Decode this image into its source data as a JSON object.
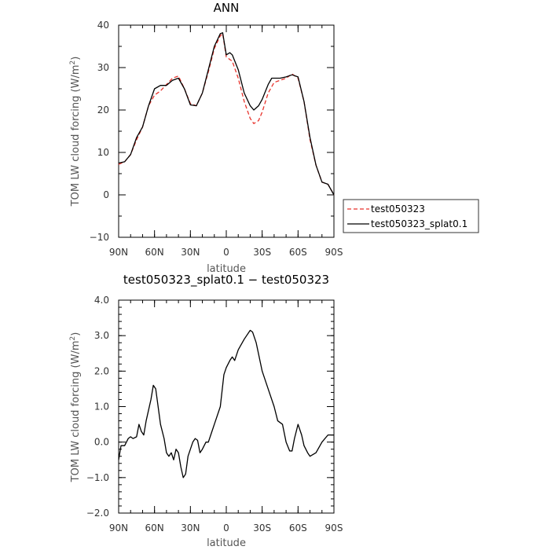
{
  "chart_data": [
    {
      "type": "line",
      "title": "ANN",
      "xlabel": "latitude",
      "ylabel": "TOM LW cloud forcing (W/m",
      "ylabel_sup": "2",
      "ylabel_end": ")",
      "xlim": [
        90,
        -90
      ],
      "ylim": [
        -10,
        40
      ],
      "xticks": [
        {
          "v": 90,
          "label": "90N"
        },
        {
          "v": 60,
          "label": "60N"
        },
        {
          "v": 30,
          "label": "30N"
        },
        {
          "v": 0,
          "label": "0"
        },
        {
          "v": -30,
          "label": "30S"
        },
        {
          "v": -60,
          "label": "60S"
        },
        {
          "v": -90,
          "label": "90S"
        }
      ],
      "yticks": [
        {
          "v": -10,
          "label": "−10"
        },
        {
          "v": 0,
          "label": "0"
        },
        {
          "v": 10,
          "label": "10"
        },
        {
          "v": 20,
          "label": "20"
        },
        {
          "v": 30,
          "label": "30"
        },
        {
          "v": 40,
          "label": "40"
        }
      ],
      "legend_position": "right",
      "series": [
        {
          "name": "test050323",
          "color": "#e8322b",
          "dash": "dashed",
          "points": [
            [
              90,
              7.2
            ],
            [
              85,
              7.8
            ],
            [
              80,
              9.5
            ],
            [
              75,
              13
            ],
            [
              70,
              16
            ],
            [
              65,
              21
            ],
            [
              60,
              23.5
            ],
            [
              55,
              24.5
            ],
            [
              50,
              26
            ],
            [
              45,
              27.5
            ],
            [
              40,
              28
            ],
            [
              35,
              25
            ],
            [
              30,
              21.5
            ],
            [
              25,
              21
            ],
            [
              20,
              24
            ],
            [
              15,
              29
            ],
            [
              10,
              34.5
            ],
            [
              5,
              37.5
            ],
            [
              3,
              38
            ],
            [
              0,
              32.5
            ],
            [
              -5,
              31.5
            ],
            [
              -10,
              27.5
            ],
            [
              -15,
              22
            ],
            [
              -20,
              18
            ],
            [
              -23,
              16.8
            ],
            [
              -27,
              17.5
            ],
            [
              -30,
              19.5
            ],
            [
              -35,
              24
            ],
            [
              -40,
              26.5
            ],
            [
              -45,
              27
            ],
            [
              -50,
              27.5
            ],
            [
              -55,
              28.5
            ],
            [
              -60,
              27.5
            ],
            [
              -65,
              22
            ],
            [
              -70,
              13
            ],
            [
              -75,
              7
            ],
            [
              -80,
              3
            ],
            [
              -85,
              2.5
            ],
            [
              -90,
              0
            ]
          ]
        },
        {
          "name": "test050323_splat0.1",
          "color": "#000000",
          "dash": "solid",
          "points": [
            [
              90,
              7.5
            ],
            [
              85,
              7.8
            ],
            [
              80,
              9.5
            ],
            [
              75,
              13.5
            ],
            [
              70,
              16
            ],
            [
              65,
              21
            ],
            [
              60,
              25
            ],
            [
              55,
              25.8
            ],
            [
              50,
              25.8
            ],
            [
              45,
              27
            ],
            [
              40,
              27.5
            ],
            [
              35,
              25
            ],
            [
              30,
              21.2
            ],
            [
              25,
              21
            ],
            [
              20,
              24
            ],
            [
              15,
              29.5
            ],
            [
              10,
              35
            ],
            [
              5,
              38
            ],
            [
              3,
              38.2
            ],
            [
              0,
              33
            ],
            [
              -3,
              33.5
            ],
            [
              -5,
              33
            ],
            [
              -10,
              29.5
            ],
            [
              -15,
              24
            ],
            [
              -20,
              21
            ],
            [
              -23,
              20
            ],
            [
              -27,
              21
            ],
            [
              -30,
              22.5
            ],
            [
              -35,
              26
            ],
            [
              -38,
              27.5
            ],
            [
              -45,
              27.5
            ],
            [
              -50,
              27.8
            ],
            [
              -55,
              28.3
            ],
            [
              -60,
              27.8
            ],
            [
              -65,
              22
            ],
            [
              -70,
              13.5
            ],
            [
              -75,
              7
            ],
            [
              -80,
              3
            ],
            [
              -85,
              2.5
            ],
            [
              -90,
              0
            ]
          ]
        }
      ]
    },
    {
      "type": "line",
      "title": "test050323_splat0.1 − test050323",
      "xlabel": "latitude",
      "ylabel": "TOM LW cloud forcing (W/m",
      "ylabel_sup": "2",
      "ylabel_end": ")",
      "xlim": [
        90,
        -90
      ],
      "ylim": [
        -2.0,
        4.0
      ],
      "xticks": [
        {
          "v": 90,
          "label": "90N"
        },
        {
          "v": 60,
          "label": "60N"
        },
        {
          "v": 30,
          "label": "30N"
        },
        {
          "v": 0,
          "label": "0"
        },
        {
          "v": -30,
          "label": "30S"
        },
        {
          "v": -60,
          "label": "60S"
        },
        {
          "v": -90,
          "label": "90S"
        }
      ],
      "yticks": [
        {
          "v": -2,
          "label": "−2.0"
        },
        {
          "v": -1,
          "label": "−1.0"
        },
        {
          "v": 0,
          "label": "0.0"
        },
        {
          "v": 1,
          "label": "1.0"
        },
        {
          "v": 2,
          "label": "2.0"
        },
        {
          "v": 3,
          "label": "3.0"
        },
        {
          "v": 4,
          "label": "4.0"
        }
      ],
      "series": [
        {
          "color": "#000000",
          "dash": "solid",
          "points": [
            [
              90,
              -0.5
            ],
            [
              88,
              -0.1
            ],
            [
              85,
              -0.1
            ],
            [
              82,
              0.1
            ],
            [
              80,
              0.15
            ],
            [
              78,
              0.1
            ],
            [
              75,
              0.15
            ],
            [
              73,
              0.5
            ],
            [
              71,
              0.3
            ],
            [
              69,
              0.2
            ],
            [
              67,
              0.6
            ],
            [
              63,
              1.2
            ],
            [
              61,
              1.6
            ],
            [
              59,
              1.5
            ],
            [
              55,
              0.5
            ],
            [
              52,
              0.1
            ],
            [
              50,
              -0.3
            ],
            [
              48,
              -0.4
            ],
            [
              46,
              -0.3
            ],
            [
              44,
              -0.5
            ],
            [
              42,
              -0.2
            ],
            [
              40,
              -0.3
            ],
            [
              38,
              -0.7
            ],
            [
              36,
              -1.0
            ],
            [
              34,
              -0.9
            ],
            [
              32,
              -0.4
            ],
            [
              30,
              -0.2
            ],
            [
              28,
              0.0
            ],
            [
              26,
              0.1
            ],
            [
              24,
              0.05
            ],
            [
              22,
              -0.3
            ],
            [
              20,
              -0.2
            ],
            [
              17,
              0.0
            ],
            [
              15,
              0.0
            ],
            [
              12,
              0.3
            ],
            [
              10,
              0.5
            ],
            [
              5,
              1.0
            ],
            [
              2,
              1.9
            ],
            [
              0,
              2.1
            ],
            [
              -3,
              2.3
            ],
            [
              -5,
              2.4
            ],
            [
              -7,
              2.3
            ],
            [
              -10,
              2.6
            ],
            [
              -15,
              2.9
            ],
            [
              -20,
              3.15
            ],
            [
              -22,
              3.1
            ],
            [
              -25,
              2.8
            ],
            [
              -30,
              2.0
            ],
            [
              -35,
              1.5
            ],
            [
              -40,
              1.0
            ],
            [
              -43,
              0.6
            ],
            [
              -47,
              0.5
            ],
            [
              -50,
              0.0
            ],
            [
              -53,
              -0.25
            ],
            [
              -55,
              -0.25
            ],
            [
              -57,
              0.1
            ],
            [
              -60,
              0.5
            ],
            [
              -63,
              0.2
            ],
            [
              -65,
              -0.1
            ],
            [
              -68,
              -0.3
            ],
            [
              -70,
              -0.4
            ],
            [
              -75,
              -0.3
            ],
            [
              -80,
              0.0
            ],
            [
              -85,
              0.2
            ],
            [
              -90,
              0.2
            ]
          ]
        }
      ]
    }
  ]
}
